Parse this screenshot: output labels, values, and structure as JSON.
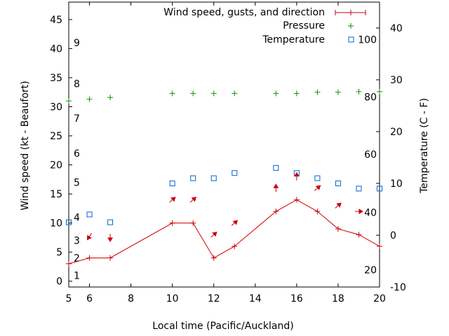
{
  "chart_data": {
    "type": "line",
    "title": "",
    "xlabel": "Local time (Pacific/Auckland)",
    "ylabel": "Wind speed (kt - Beaufort)",
    "y2label": "Temperature (C - F)",
    "xlim": [
      5,
      20
    ],
    "ylim": [
      -1,
      48
    ],
    "y2lim": [
      -10,
      45
    ],
    "xticks": [
      6,
      8,
      10,
      12,
      14,
      16,
      18,
      20
    ],
    "yticks": [
      0,
      5,
      10,
      15,
      20,
      25,
      30,
      35,
      40,
      45
    ],
    "y2ticks": [
      -10,
      0,
      10,
      20,
      30,
      40
    ],
    "beaufort_labels": [
      {
        "label": "1",
        "y": 1
      },
      {
        "label": "2",
        "y": 4
      },
      {
        "label": "3",
        "y": 7
      },
      {
        "label": "4",
        "y": 11
      },
      {
        "label": "5",
        "y": 17
      },
      {
        "label": "6",
        "y": 22
      },
      {
        "label": "7",
        "y": 28
      },
      {
        "label": "8",
        "y": 34
      },
      {
        "label": "9",
        "y": 41
      }
    ],
    "fahrenheit_labels": [
      {
        "label": "20",
        "t": -6.7
      },
      {
        "label": "40",
        "t": 4.4
      },
      {
        "label": "60",
        "t": 15.6
      },
      {
        "label": "80",
        "t": 26.7
      },
      {
        "label": "100",
        "t": 37.8
      }
    ],
    "series": [
      {
        "name": "Wind speed, gusts, and direction",
        "color": "#cc0000",
        "x": [
          5,
          6,
          7,
          10,
          11,
          12,
          13,
          15,
          16,
          17,
          18,
          19,
          20
        ],
        "values": [
          3,
          4,
          4,
          10,
          10,
          4,
          6,
          12,
          14,
          12,
          9,
          8,
          6
        ]
      },
      {
        "name": "Pressure",
        "color": "#009900",
        "x": [
          5,
          6,
          7,
          10,
          11,
          12,
          13,
          15,
          16,
          17,
          18,
          19,
          20
        ],
        "values": [
          31.0,
          31.3,
          31.6,
          32.3,
          32.3,
          32.3,
          32.3,
          32.3,
          32.3,
          32.5,
          32.5,
          32.6,
          32.6
        ]
      },
      {
        "name": "Temperature",
        "color": "#0066cc",
        "axis": "y2",
        "x": [
          5,
          6,
          7,
          10,
          11,
          12,
          13,
          15,
          16,
          17,
          18,
          19,
          20
        ],
        "values": [
          2.5,
          4,
          2.5,
          10,
          11,
          11,
          12,
          13,
          12,
          11,
          10,
          9,
          9
        ]
      }
    ],
    "wind_arrows": [
      {
        "x": 6,
        "y": 7.7,
        "toward": "dl"
      },
      {
        "x": 7,
        "y": 7.5,
        "toward": "d"
      },
      {
        "x": 10,
        "y": 14,
        "toward": "ur"
      },
      {
        "x": 11,
        "y": 14,
        "toward": "ur"
      },
      {
        "x": 12,
        "y": 8,
        "toward": "ur"
      },
      {
        "x": 13,
        "y": 10,
        "toward": "ur"
      },
      {
        "x": 15,
        "y": 16,
        "toward": "u"
      },
      {
        "x": 16,
        "y": 18,
        "toward": "u"
      },
      {
        "x": 17,
        "y": 16,
        "toward": "ur"
      },
      {
        "x": 18,
        "y": 13,
        "toward": "ur"
      },
      {
        "x": 19,
        "y": 12,
        "toward": "r"
      }
    ],
    "legend": "top-right"
  }
}
